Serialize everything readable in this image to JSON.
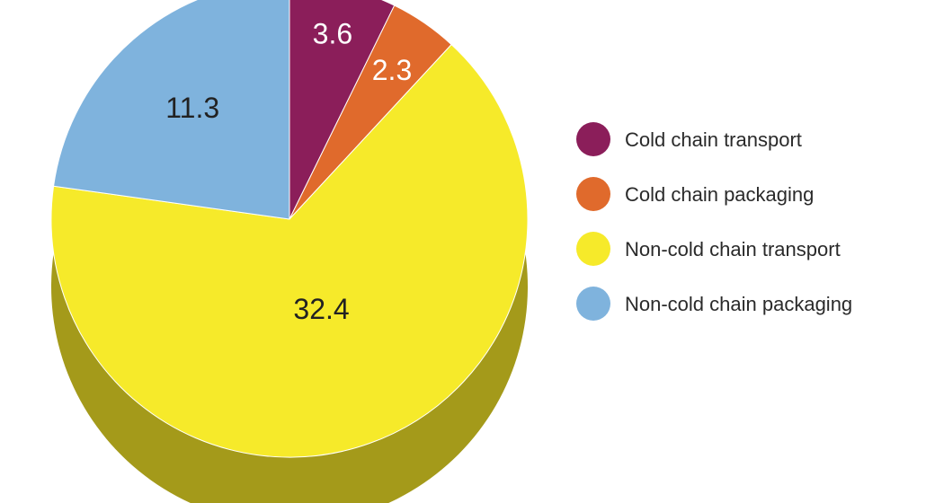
{
  "chart_data": {
    "type": "pie",
    "categories": [
      "Cold chain transport",
      "Cold chain packaging",
      "Non-cold chain transport",
      "Non-cold chain packaging"
    ],
    "values": [
      3.6,
      2.3,
      32.4,
      11.3
    ],
    "value_labels": [
      "3.6",
      "2.3",
      "32.4",
      "11.3"
    ],
    "colors": [
      "#8b1e5a",
      "#e06a2c",
      "#f6ea2a",
      "#7fb3dd"
    ],
    "side_colors": [
      "#5c1340",
      "#9c4a1e",
      "#a49a1a",
      "#4f6f8a"
    ],
    "label_colors": [
      "#ffffff",
      "#ffffff",
      "#222222",
      "#222222"
    ],
    "style": "3d",
    "legend": {
      "position": "right"
    }
  }
}
